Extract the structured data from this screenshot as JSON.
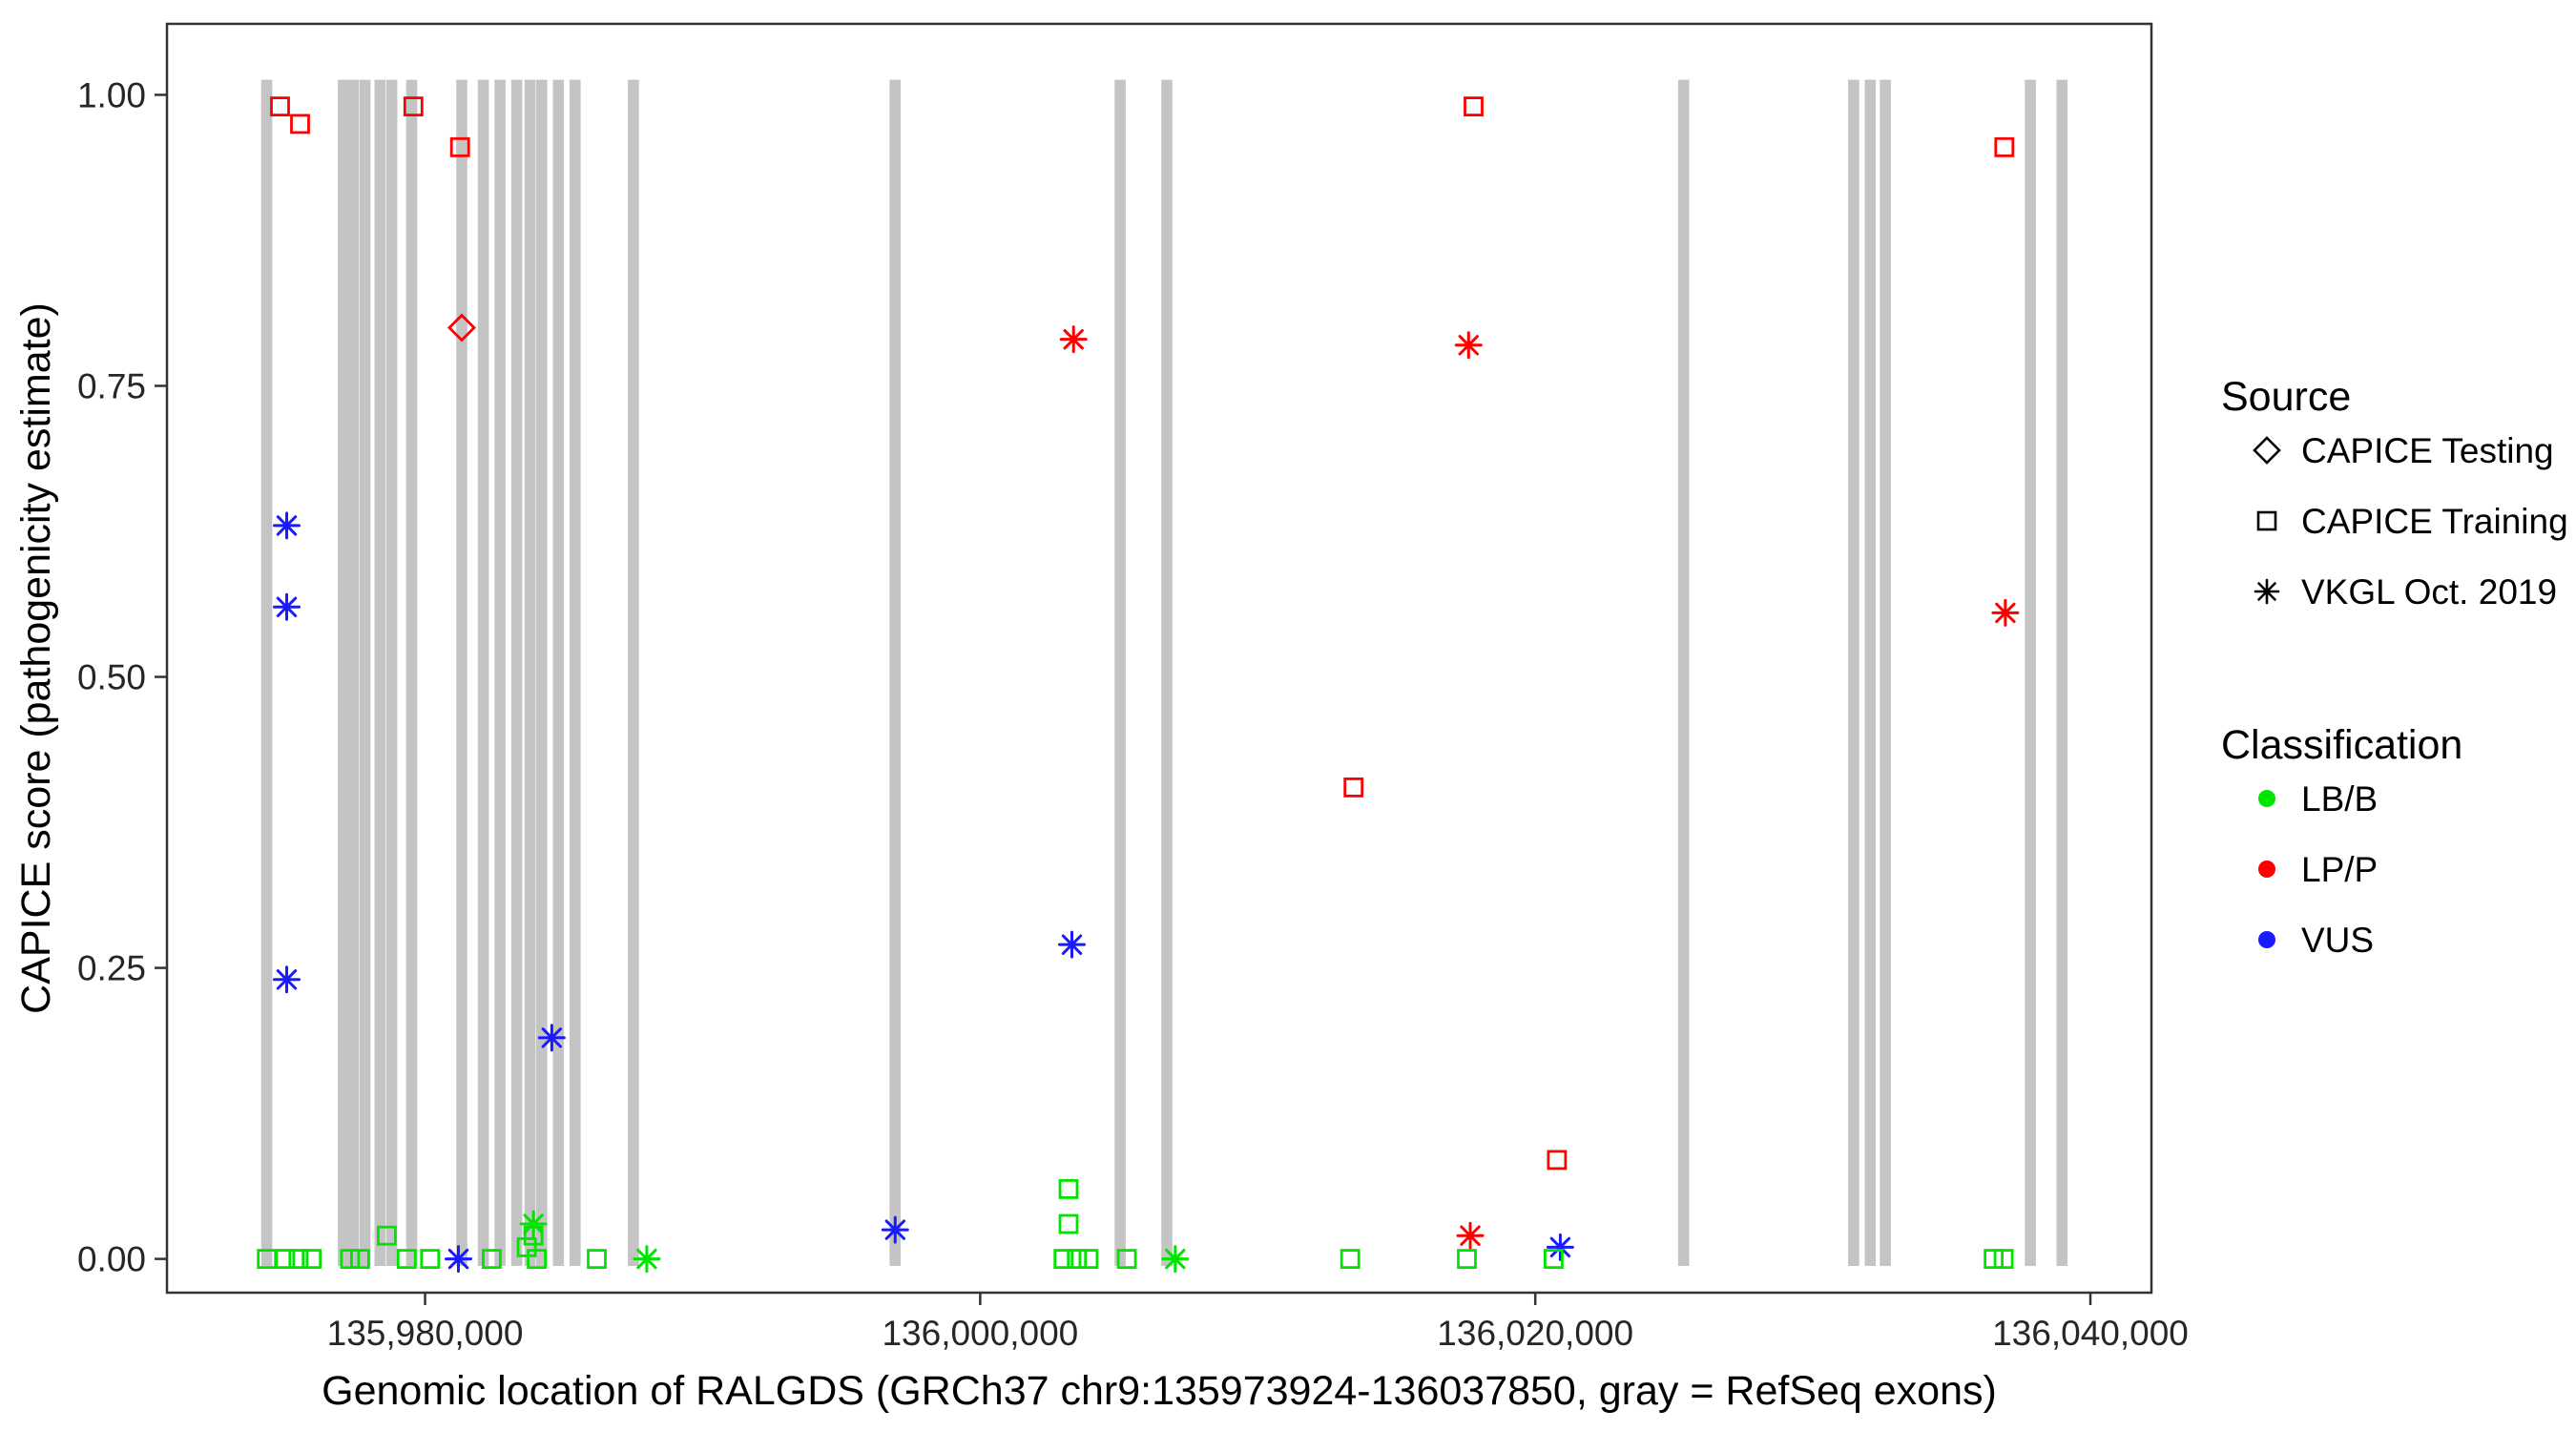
{
  "chart_data": {
    "type": "scatter",
    "title": "",
    "xlabel": "Genomic location of RALGDS (GRCh37 chr9:135973924-136037850, gray = RefSeq exons)",
    "ylabel": "CAPICE score (pathogenicity estimate)",
    "xlim": [
      135970700,
      136042200
    ],
    "ylim": [
      -0.029,
      1.061
    ],
    "grid": false,
    "panel_background": "#ffffff",
    "exon_color": "#c4c4c4",
    "colors": {
      "LBB": "#00e500",
      "LPP": "#ff0000",
      "VUS": "#1a1aff"
    },
    "x_ticks": [
      {
        "value": 135980000,
        "label": "135,980,000"
      },
      {
        "value": 136000000,
        "label": "136,000,000"
      },
      {
        "value": 136020000,
        "label": "136,020,000"
      },
      {
        "value": 136040000,
        "label": "136,040,000"
      }
    ],
    "y_ticks": [
      {
        "value": 0.0,
        "label": "0.00"
      },
      {
        "value": 0.25,
        "label": "0.25"
      },
      {
        "value": 0.5,
        "label": "0.50"
      },
      {
        "value": 0.75,
        "label": "0.75"
      },
      {
        "value": 1.0,
        "label": "1.00"
      }
    ],
    "exons": [
      [
        135974096,
        135974496
      ],
      [
        135976857,
        135977257
      ],
      [
        135977217,
        135977617
      ],
      [
        135977637,
        135978037
      ],
      [
        135978178,
        135978578
      ],
      [
        135978598,
        135978998
      ],
      [
        135979319,
        135979719
      ],
      [
        135981121,
        135981521
      ],
      [
        135981901,
        135982301
      ],
      [
        135982502,
        135982902
      ],
      [
        135983103,
        135983503
      ],
      [
        135983583,
        135983983
      ],
      [
        135984004,
        135984404
      ],
      [
        135984604,
        135985004
      ],
      [
        135985205,
        135985605
      ],
      [
        135987307,
        135987707
      ],
      [
        135996737,
        135997137
      ],
      [
        136004845,
        136005245
      ],
      [
        136006527,
        136006927
      ],
      [
        136025145,
        136025545
      ],
      [
        136031271,
        136031671
      ],
      [
        136031871,
        136032271
      ],
      [
        136032412,
        136032812
      ],
      [
        136037637,
        136038037
      ],
      [
        136038778,
        136039178
      ]
    ],
    "points": [
      {
        "x": 135974775,
        "y": 0.99,
        "shape": "square",
        "cls": "LPP",
        "source": "CAPICE Training"
      },
      {
        "x": 135975496,
        "y": 0.975,
        "shape": "square",
        "cls": "LPP",
        "source": "CAPICE Training"
      },
      {
        "x": 135979580,
        "y": 0.99,
        "shape": "square",
        "cls": "LPP",
        "source": "CAPICE Training"
      },
      {
        "x": 135981260,
        "y": 0.955,
        "shape": "square",
        "cls": "LPP",
        "source": "CAPICE Training"
      },
      {
        "x": 136017777,
        "y": 0.99,
        "shape": "square",
        "cls": "LPP",
        "source": "CAPICE Training"
      },
      {
        "x": 136036900,
        "y": 0.955,
        "shape": "square",
        "cls": "LPP",
        "source": "CAPICE Training"
      },
      {
        "x": 136013453,
        "y": 0.405,
        "shape": "square",
        "cls": "LPP",
        "source": "CAPICE Training"
      },
      {
        "x": 136020781,
        "y": 0.085,
        "shape": "square",
        "cls": "LPP",
        "source": "CAPICE Training"
      },
      {
        "x": 135981321,
        "y": 0.8,
        "shape": "diamond",
        "cls": "LPP",
        "source": "CAPICE Testing"
      },
      {
        "x": 136003364,
        "y": 0.79,
        "shape": "asterisk",
        "cls": "LPP",
        "source": "VKGL Oct. 2019"
      },
      {
        "x": 136017597,
        "y": 0.785,
        "shape": "asterisk",
        "cls": "LPP",
        "source": "VKGL Oct. 2019"
      },
      {
        "x": 136036936,
        "y": 0.555,
        "shape": "asterisk",
        "cls": "LPP",
        "source": "VKGL Oct. 2019"
      },
      {
        "x": 136017657,
        "y": 0.02,
        "shape": "asterisk",
        "cls": "LPP",
        "source": "VKGL Oct. 2019"
      },
      {
        "x": 135975015,
        "y": 0.63,
        "shape": "asterisk",
        "cls": "VUS",
        "source": "VKGL Oct. 2019"
      },
      {
        "x": 135975015,
        "y": 0.56,
        "shape": "asterisk",
        "cls": "VUS",
        "source": "VKGL Oct. 2019"
      },
      {
        "x": 135975015,
        "y": 0.24,
        "shape": "asterisk",
        "cls": "VUS",
        "source": "VKGL Oct. 2019"
      },
      {
        "x": 135984565,
        "y": 0.19,
        "shape": "asterisk",
        "cls": "VUS",
        "source": "VKGL Oct. 2019"
      },
      {
        "x": 136003304,
        "y": 0.27,
        "shape": "asterisk",
        "cls": "VUS",
        "source": "VKGL Oct. 2019"
      },
      {
        "x": 135996937,
        "y": 0.025,
        "shape": "asterisk",
        "cls": "VUS",
        "source": "VKGL Oct. 2019"
      },
      {
        "x": 135981201,
        "y": 0.0,
        "shape": "asterisk",
        "cls": "VUS",
        "source": "VKGL Oct. 2019"
      },
      {
        "x": 136020901,
        "y": 0.01,
        "shape": "asterisk",
        "cls": "VUS",
        "source": "VKGL Oct. 2019"
      },
      {
        "x": 135983904,
        "y": 0.03,
        "shape": "asterisk",
        "cls": "LBB",
        "source": "VKGL Oct. 2019"
      },
      {
        "x": 135987988,
        "y": 0.0,
        "shape": "asterisk",
        "cls": "LBB",
        "source": "VKGL Oct. 2019"
      },
      {
        "x": 136007027,
        "y": 0.0,
        "shape": "asterisk",
        "cls": "LBB",
        "source": "VKGL Oct. 2019"
      },
      {
        "x": 135974300,
        "y": 0.0,
        "shape": "square",
        "cls": "LBB",
        "source": "CAPICE Training"
      },
      {
        "x": 135974955,
        "y": 0.0,
        "shape": "square",
        "cls": "LBB",
        "source": "CAPICE Training"
      },
      {
        "x": 135975436,
        "y": 0.0,
        "shape": "square",
        "cls": "LBB",
        "source": "CAPICE Training"
      },
      {
        "x": 135975916,
        "y": 0.0,
        "shape": "square",
        "cls": "LBB",
        "source": "CAPICE Training"
      },
      {
        "x": 135977297,
        "y": 0.0,
        "shape": "square",
        "cls": "LBB",
        "source": "CAPICE Training"
      },
      {
        "x": 135977657,
        "y": 0.0,
        "shape": "square",
        "cls": "LBB",
        "source": "CAPICE Training"
      },
      {
        "x": 135978619,
        "y": 0.02,
        "shape": "square",
        "cls": "LBB",
        "source": "CAPICE Training"
      },
      {
        "x": 135979339,
        "y": 0.0,
        "shape": "square",
        "cls": "LBB",
        "source": "CAPICE Training"
      },
      {
        "x": 135980180,
        "y": 0.0,
        "shape": "square",
        "cls": "LBB",
        "source": "CAPICE Training"
      },
      {
        "x": 135982402,
        "y": 0.0,
        "shape": "square",
        "cls": "LBB",
        "source": "CAPICE Training"
      },
      {
        "x": 135983663,
        "y": 0.01,
        "shape": "square",
        "cls": "LBB",
        "source": "CAPICE Training"
      },
      {
        "x": 135983904,
        "y": 0.02,
        "shape": "square",
        "cls": "LBB",
        "source": "CAPICE Training"
      },
      {
        "x": 135984024,
        "y": 0.0,
        "shape": "square",
        "cls": "LBB",
        "source": "CAPICE Training"
      },
      {
        "x": 135986186,
        "y": 0.0,
        "shape": "square",
        "cls": "LBB",
        "source": "CAPICE Training"
      },
      {
        "x": 136003184,
        "y": 0.06,
        "shape": "square",
        "cls": "LBB",
        "source": "CAPICE Training"
      },
      {
        "x": 136003184,
        "y": 0.03,
        "shape": "square",
        "cls": "LBB",
        "source": "CAPICE Training"
      },
      {
        "x": 136003003,
        "y": 0.0,
        "shape": "square",
        "cls": "LBB",
        "source": "CAPICE Training"
      },
      {
        "x": 136003484,
        "y": 0.0,
        "shape": "square",
        "cls": "LBB",
        "source": "CAPICE Training"
      },
      {
        "x": 136003904,
        "y": 0.0,
        "shape": "square",
        "cls": "LBB",
        "source": "CAPICE Training"
      },
      {
        "x": 136005285,
        "y": 0.0,
        "shape": "square",
        "cls": "LBB",
        "source": "CAPICE Training"
      },
      {
        "x": 136013333,
        "y": 0.0,
        "shape": "square",
        "cls": "LBB",
        "source": "CAPICE Training"
      },
      {
        "x": 136017537,
        "y": 0.0,
        "shape": "square",
        "cls": "LBB",
        "source": "CAPICE Training"
      },
      {
        "x": 136020661,
        "y": 0.0,
        "shape": "square",
        "cls": "LBB",
        "source": "CAPICE Training"
      },
      {
        "x": 136036516,
        "y": 0.0,
        "shape": "square",
        "cls": "LBB",
        "source": "CAPICE Training"
      },
      {
        "x": 136036876,
        "y": 0.0,
        "shape": "square",
        "cls": "LBB",
        "source": "CAPICE Training"
      }
    ]
  },
  "legend": {
    "source": {
      "title": "Source",
      "items": [
        {
          "label": "CAPICE Testing",
          "shape": "diamond"
        },
        {
          "label": "CAPICE Training",
          "shape": "square"
        },
        {
          "label": "VKGL Oct. 2019",
          "shape": "asterisk"
        }
      ]
    },
    "classification": {
      "title": "Classification",
      "items": [
        {
          "label": "LB/B",
          "color_key": "LBB"
        },
        {
          "label": "LP/P",
          "color_key": "LPP"
        },
        {
          "label": "VUS",
          "color_key": "VUS"
        }
      ]
    }
  }
}
